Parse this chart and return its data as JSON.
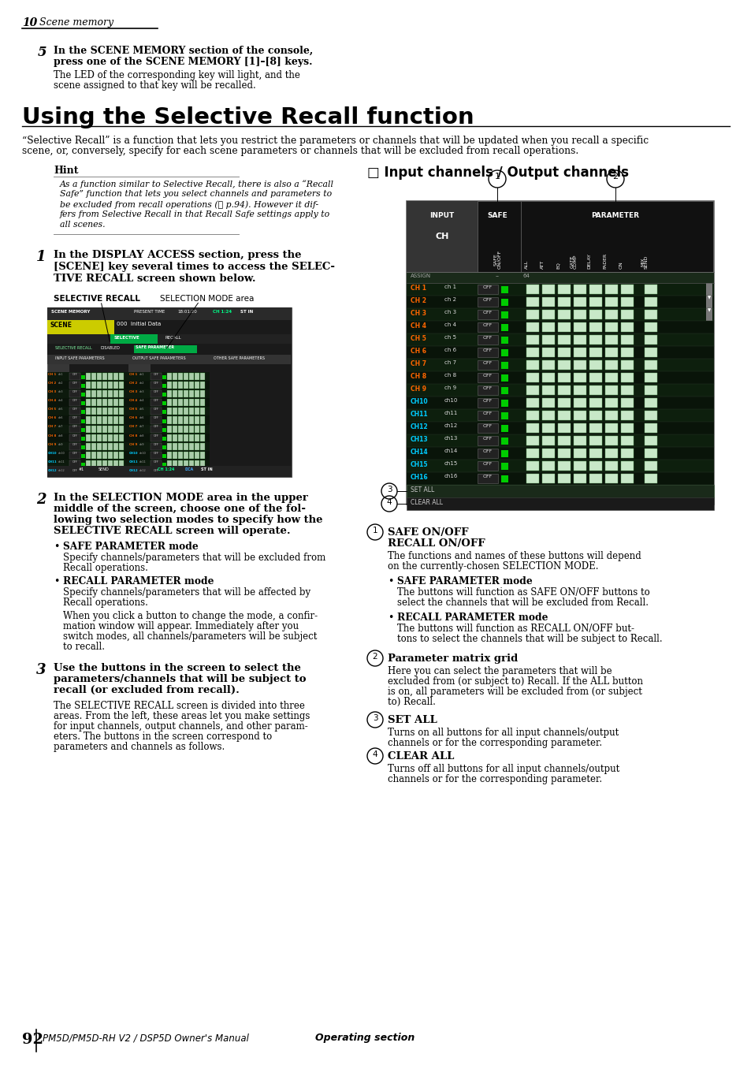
{
  "page_num": "92",
  "chapter_num": "10",
  "chapter_title": "Scene memory",
  "footer_text": "PM5D/PM5D-RH V2 / DSP5D Owner's Manual",
  "footer_bold": "Operating section",
  "step5_bold_1": "In the SCENE MEMORY section of the console,",
  "step5_bold_2": "press one of the SCENE MEMORY [1]–[8] keys.",
  "step5_normal_1": "The LED of the corresponding key will light, and the",
  "step5_normal_2": "scene assigned to that key will be recalled.",
  "section_title": "Using the Selective Recall function",
  "intro_text_1": "“Selective Recall” is a function that lets you restrict the parameters or channels that will be updated when you recall a specific",
  "intro_text_2": "scene, or, conversely, specify for each scene parameters or channels that will be excluded from recall operations.",
  "hint_title": "Hint",
  "hint_line1": "As a function similar to Selective Recall, there is also a “Recall",
  "hint_line2": "Safe” function that lets you select channels and parameters to",
  "hint_line3": "be excluded from recall operations (➞ p.94). However it dif-",
  "hint_line4": "fers from Selective Recall in that Recall Safe settings apply to",
  "hint_line5": "all scenes.",
  "step1_line1": "In the DISPLAY ACCESS section, press the",
  "step1_line2": "[SCENE] key several times to access the SELEC-",
  "step1_line3": "TIVE RECALL screen shown below.",
  "label_selective": "SELECTIVE RECALL",
  "label_selection": "SELECTION MODE area",
  "step2_line1": "In the SELECTION MODE area in the upper",
  "step2_line2": "middle of the screen, choose one of the fol-",
  "step2_line3": "lowing two selection modes to specify how the",
  "step2_line4": "SELECTIVE RECALL screen will operate.",
  "safe_mode_title": "SAFE PARAMETER mode",
  "safe_mode_text1": "Specify channels/parameters that will be excluded from",
  "safe_mode_text2": "Recall operations.",
  "recall_mode_title": "RECALL PARAMETER mode",
  "recall_mode_text1": "Specify channels/parameters that will be affected by",
  "recall_mode_text2": "Recall operations.",
  "recall_mode_text3": "When you click a button to change the mode, a confir-",
  "recall_mode_text4": "mation window will appear. Immediately after you",
  "recall_mode_text5": "switch modes, all channels/parameters will be subject",
  "recall_mode_text6": "to recall.",
  "step3_line1": "Use the buttons in the screen to select the",
  "step3_line2": "parameters/channels that will be subject to",
  "step3_line3": "recall (or excluded from recall).",
  "step3_text1": "The SELECTIVE RECALL screen is divided into three",
  "step3_text2": "areas. From the left, these areas let you make settings",
  "step3_text3": "for input channels, output channels, and other param-",
  "step3_text4": "eters. The buttons in the screen correspond to",
  "step3_text5": "parameters and channels as follows.",
  "right_header": "□ Input channels / Output channels",
  "circ1_title1": "SAFE ON/OFF",
  "circ1_title2": "RECALL ON/OFF",
  "circ1_text1": "The functions and names of these buttons will depend",
  "circ1_text2": "on the currently-chosen SELECTION MODE.",
  "bullet_safe_title": "SAFE PARAMETER mode",
  "bullet_safe_text1": "The buttons will function as SAFE ON/OFF buttons to",
  "bullet_safe_text2": "select the channels that will be excluded from Recall.",
  "bullet_recall_title": "RECALL PARAMETER mode",
  "bullet_recall_text1": "The buttons will function as RECALL ON/OFF but-",
  "bullet_recall_text2": "tons to select the channels that will be subject to Recall.",
  "circ2_title": "Parameter matrix grid",
  "circ2_text1": "Here you can select the parameters that will be",
  "circ2_text2": "excluded from (or subject to) Recall. If the ALL button",
  "circ2_text3": "is on, all parameters will be excluded from (or subject",
  "circ2_text4": "to) Recall.",
  "circ3_title": "SET ALL",
  "circ3_text1": "Turns on all buttons for all input channels/output",
  "circ3_text2": "channels or for the corresponding parameter.",
  "circ4_title": "CLEAR ALL",
  "circ4_text1": "Turns off all buttons for all input channels/output",
  "circ4_text2": "channels or for the corresponding parameter.",
  "bg_color": "#ffffff",
  "channels_top9": [
    "CH 1",
    "CH 2",
    "CH 3",
    "CH 4",
    "CH 5",
    "CH 6",
    "CH 7",
    "CH 8",
    "CH 9"
  ],
  "channels_bot7": [
    "CH10",
    "CH11",
    "CH12",
    "CH13",
    "CH14",
    "CH15",
    "CH16"
  ],
  "ch_labels": [
    "ch 1",
    "ch 2",
    "ch 3",
    "ch 4",
    "ch 5",
    "ch 6",
    "ch 7",
    "ch 8",
    "ch 9",
    "ch10",
    "ch11",
    "ch12",
    "ch13",
    "ch14",
    "ch15",
    "ch16"
  ],
  "col_labels": [
    "SAFE\nON/OFF",
    "ALL",
    "ATT",
    "EQ",
    "GATE\nCOMP",
    "DELAY",
    "FADER",
    "MIX\nSEND"
  ]
}
